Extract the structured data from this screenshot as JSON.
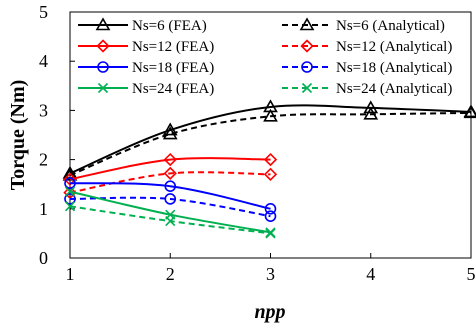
{
  "chart_data": {
    "type": "line",
    "title": "",
    "xlabel": "npp",
    "ylabel": "Torque (Nm)",
    "xlim": [
      1,
      5
    ],
    "ylim": [
      0,
      5
    ],
    "xticks": [
      "1",
      "2",
      "3",
      "4",
      "5"
    ],
    "yticks": [
      "0",
      "1",
      "2",
      "3",
      "4",
      "5"
    ],
    "grid": false,
    "legend_position": "top",
    "series": [
      {
        "name": "Ns=6 (FEA)",
        "color": "#000000",
        "dash": "solid",
        "marker": "triangle",
        "x": [
          1,
          2,
          3,
          4,
          5
        ],
        "y": [
          1.72,
          2.6,
          3.07,
          3.05,
          2.97
        ]
      },
      {
        "name": "Ns=6 (Analytical)",
        "color": "#000000",
        "dash": "dashed",
        "marker": "triangle",
        "x": [
          1,
          2,
          3,
          4,
          5
        ],
        "y": [
          1.68,
          2.52,
          2.88,
          2.92,
          2.95
        ]
      },
      {
        "name": "Ns=12 (FEA)",
        "color": "#ff0000",
        "dash": "solid",
        "marker": "diamond",
        "x": [
          1,
          2,
          3
        ],
        "y": [
          1.6,
          2.0,
          2.0
        ]
      },
      {
        "name": "Ns=12 (Analytical)",
        "color": "#ff0000",
        "dash": "dashed",
        "marker": "diamond",
        "x": [
          1,
          2,
          3
        ],
        "y": [
          1.33,
          1.72,
          1.7
        ]
      },
      {
        "name": "Ns=18 (FEA)",
        "color": "#0000ff",
        "dash": "solid",
        "marker": "circle",
        "x": [
          1,
          2,
          3
        ],
        "y": [
          1.52,
          1.46,
          1.0
        ]
      },
      {
        "name": "Ns=18 (Analytical)",
        "color": "#0000ff",
        "dash": "dashed",
        "marker": "circle",
        "x": [
          1,
          2,
          3
        ],
        "y": [
          1.2,
          1.2,
          0.85
        ]
      },
      {
        "name": "Ns=24 (FEA)",
        "color": "#00b050",
        "dash": "solid",
        "marker": "x",
        "x": [
          1,
          2,
          3
        ],
        "y": [
          1.35,
          0.88,
          0.52
        ]
      },
      {
        "name": "Ns=24 (Analytical)",
        "color": "#00b050",
        "dash": "dashed",
        "marker": "x",
        "x": [
          1,
          2,
          3
        ],
        "y": [
          1.05,
          0.75,
          0.5
        ]
      }
    ]
  }
}
